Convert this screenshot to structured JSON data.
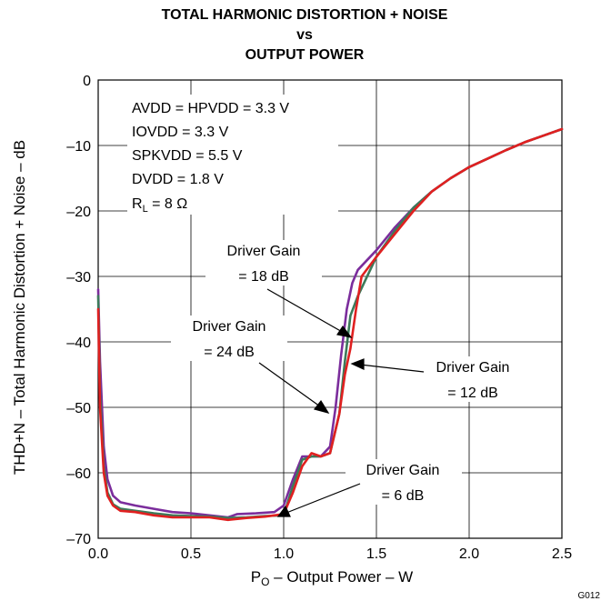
{
  "chart_data": {
    "type": "line",
    "title": [
      "TOTAL HARMONIC DISTORTION + NOISE",
      "vs",
      "OUTPUT POWER"
    ],
    "xlabel_main": "P",
    "xlabel_sub": "O",
    "xlabel_rest": " – Output Power – W",
    "ylabel": "THD+N – Total Harmonic Distortion + Noise – dB",
    "xlim": [
      0,
      2.5
    ],
    "ylim": [
      -70,
      0
    ],
    "xticks": [
      0,
      0.5,
      1,
      1.5,
      2,
      2.5
    ],
    "xtick_labels": [
      "0.0",
      "0.5",
      "1.0",
      "1.5",
      "2.0",
      "2.5"
    ],
    "yticks": [
      0,
      -10,
      -20,
      -30,
      -40,
      -50,
      -60,
      -70
    ],
    "ytick_labels": [
      "0",
      "–10",
      "–20",
      "–30",
      "–40",
      "–50",
      "–60",
      "–70"
    ],
    "grid": true,
    "conditions": {
      "line1": "AVDD = HPVDD = 3.3 V",
      "line2": "IOVDD = 3.3 V",
      "line3": "SPKVDD = 5.5 V",
      "line4": "DVDD = 1.8 V",
      "line5_main": "R",
      "line5_sub": "L",
      "line5_rest": "  = 8 Ω"
    },
    "corner_code": "G012",
    "series": [
      {
        "name": "Driver Gain = 24 dB",
        "color": "#7b2d9c",
        "x": [
          0.0,
          0.01,
          0.03,
          0.05,
          0.08,
          0.12,
          0.2,
          0.3,
          0.4,
          0.5,
          0.6,
          0.7,
          0.75,
          0.85,
          0.95,
          1.0,
          1.05,
          1.1,
          1.15,
          1.2,
          1.25,
          1.28,
          1.31,
          1.34,
          1.37,
          1.4,
          1.5,
          1.6,
          1.7,
          1.8,
          1.9,
          2.0,
          2.1,
          2.2,
          2.3,
          2.4,
          2.5
        ],
        "y": [
          -32,
          -43,
          -56,
          -61,
          -63.5,
          -64.5,
          -65,
          -65.5,
          -66,
          -66.2,
          -66.5,
          -66.8,
          -66.3,
          -66.2,
          -66,
          -65,
          -61,
          -57.5,
          -57.5,
          -57.5,
          -56,
          -50,
          -42,
          -35,
          -31,
          -29,
          -26,
          -22.5,
          -19.5,
          -17,
          -15,
          -13.3,
          -12,
          -10.7,
          -9.5,
          -8.5,
          -7.5
        ]
      },
      {
        "name": "Driver Gain = 18 dB",
        "color": "#3c7a5a",
        "x": [
          0.0,
          0.01,
          0.03,
          0.05,
          0.08,
          0.12,
          0.2,
          0.3,
          0.4,
          0.5,
          0.6,
          0.7,
          0.8,
          0.9,
          1.0,
          1.05,
          1.1,
          1.15,
          1.2,
          1.25,
          1.3,
          1.33,
          1.36,
          1.4,
          1.5,
          1.6,
          1.7,
          1.8,
          1.9,
          2.0,
          2.1,
          2.2,
          2.3,
          2.4,
          2.5
        ],
        "y": [
          -33,
          -48,
          -59,
          -63,
          -64.8,
          -65.5,
          -65.8,
          -66.2,
          -66.5,
          -66.6,
          -66.7,
          -66.9,
          -66.8,
          -66.6,
          -66.5,
          -62,
          -58,
          -57.5,
          -57.5,
          -57,
          -51,
          -43,
          -36,
          -33,
          -27,
          -23,
          -19.5,
          -17,
          -15,
          -13.3,
          -12,
          -10.7,
          -9.5,
          -8.5,
          -7.5
        ]
      },
      {
        "name": "Driver Gain = 12 dB",
        "color": "#e02020",
        "x": [
          0.0,
          0.01,
          0.03,
          0.05,
          0.08,
          0.12,
          0.2,
          0.3,
          0.4,
          0.5,
          0.6,
          0.7,
          0.8,
          0.9,
          1.0,
          1.05,
          1.1,
          1.15,
          1.2,
          1.25,
          1.3,
          1.33,
          1.36,
          1.39,
          1.42,
          1.5,
          1.6,
          1.7,
          1.8,
          1.9,
          2.0,
          2.1,
          2.2,
          2.3,
          2.4,
          2.5
        ],
        "y": [
          -35,
          -50,
          -60,
          -63.5,
          -65,
          -65.8,
          -66,
          -66.5,
          -66.8,
          -66.8,
          -66.8,
          -67.2,
          -66.9,
          -66.7,
          -66.3,
          -63,
          -59,
          -57,
          -57.5,
          -57,
          -51,
          -45,
          -41,
          -35,
          -30,
          -27,
          -23.5,
          -20,
          -17,
          -15,
          -13.3,
          -12,
          -10.7,
          -9.5,
          -8.5,
          -7.5
        ]
      }
    ],
    "annotations": [
      {
        "line1": "Driver Gain",
        "line2": "= 18 dB"
      },
      {
        "line1": "Driver Gain",
        "line2": "= 24 dB"
      },
      {
        "line1": "Driver Gain",
        "line2": "= 12 dB"
      },
      {
        "line1": "Driver Gain",
        "line2": "= 6 dB"
      }
    ]
  }
}
